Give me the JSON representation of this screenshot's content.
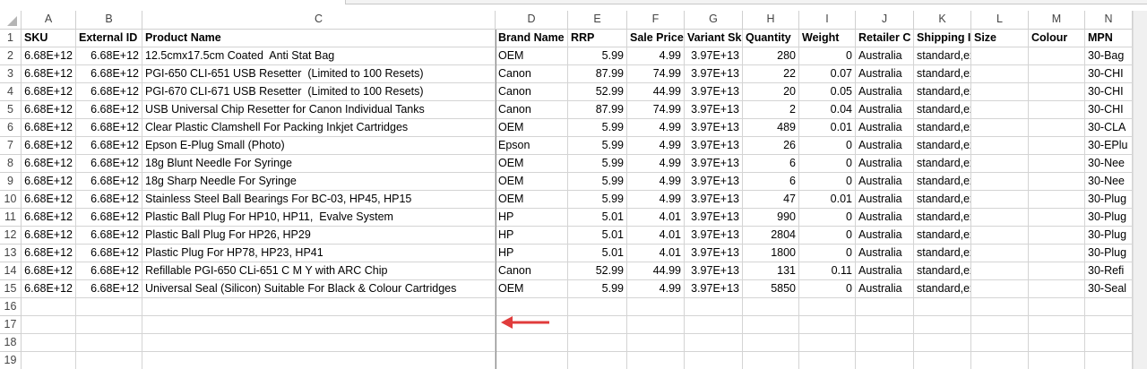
{
  "column_headers": [
    "A",
    "B",
    "C",
    "D",
    "E",
    "F",
    "G",
    "H",
    "I",
    "J",
    "K",
    "L",
    "M",
    "N"
  ],
  "row_numbers": [
    1,
    2,
    3,
    4,
    5,
    6,
    7,
    8,
    9,
    10,
    11,
    12,
    13,
    14,
    15,
    16,
    17,
    18,
    19
  ],
  "rows": [
    [
      "SKU",
      "External ID",
      "Product Name",
      "Brand Name",
      "RRP",
      "Sale Price",
      "Variant Sk",
      "Quantity",
      "Weight",
      "Retailer C",
      "Shipping I",
      "Size",
      "Colour",
      "MPN"
    ],
    [
      "6.68E+12",
      "6.68E+12",
      "12.5cmx17.5cm Coated  Anti Stat Bag",
      "OEM",
      "5.99",
      "4.99",
      "3.97E+13",
      "280",
      "0",
      "Australia",
      "standard,express",
      null,
      null,
      "30-Bag"
    ],
    [
      "6.68E+12",
      "6.68E+12",
      "PGI-650 CLI-651 USB Resetter  (Limited to 100 Resets)",
      "Canon",
      "87.99",
      "74.99",
      "3.97E+13",
      "22",
      "0.07",
      "Australia",
      "standard,express",
      null,
      null,
      "30-CHI"
    ],
    [
      "6.68E+12",
      "6.68E+12",
      "PGI-670 CLI-671 USB Resetter  (Limited to 100 Resets)",
      "Canon",
      "52.99",
      "44.99",
      "3.97E+13",
      "20",
      "0.05",
      "Australia",
      "standard,express",
      null,
      null,
      "30-CHI"
    ],
    [
      "6.68E+12",
      "6.68E+12",
      "USB Universal Chip Resetter for Canon Individual Tanks",
      "Canon",
      "87.99",
      "74.99",
      "3.97E+13",
      "2",
      "0.04",
      "Australia",
      "standard,express",
      null,
      null,
      "30-CHI"
    ],
    [
      "6.68E+12",
      "6.68E+12",
      "Clear Plastic Clamshell For Packing Inkjet Cartridges",
      "OEM",
      "5.99",
      "4.99",
      "3.97E+13",
      "489",
      "0.01",
      "Australia",
      "standard,express",
      null,
      null,
      "30-CLA"
    ],
    [
      "6.68E+12",
      "6.68E+12",
      "Epson E-Plug Small (Photo)",
      "Epson",
      "5.99",
      "4.99",
      "3.97E+13",
      "26",
      "0",
      "Australia",
      "standard,express",
      null,
      null,
      "30-EPlu"
    ],
    [
      "6.68E+12",
      "6.68E+12",
      "18g Blunt Needle For Syringe",
      "OEM",
      "5.99",
      "4.99",
      "3.97E+13",
      "6",
      "0",
      "Australia",
      "standard,express",
      null,
      null,
      "30-Nee"
    ],
    [
      "6.68E+12",
      "6.68E+12",
      "18g Sharp Needle For Syringe",
      "OEM",
      "5.99",
      "4.99",
      "3.97E+13",
      "6",
      "0",
      "Australia",
      "standard,express",
      null,
      null,
      "30-Nee"
    ],
    [
      "6.68E+12",
      "6.68E+12",
      "Stainless Steel Ball Bearings For BC-03, HP45, HP15",
      "OEM",
      "5.99",
      "4.99",
      "3.97E+13",
      "47",
      "0.01",
      "Australia",
      "standard,express",
      null,
      null,
      "30-Plug"
    ],
    [
      "6.68E+12",
      "6.68E+12",
      "Plastic Ball Plug For HP10, HP11,  Evalve System",
      "HP",
      "5.01",
      "4.01",
      "3.97E+13",
      "990",
      "0",
      "Australia",
      "standard,express",
      null,
      null,
      "30-Plug"
    ],
    [
      "6.68E+12",
      "6.68E+12",
      "Plastic Ball Plug For HP26, HP29",
      "HP",
      "5.01",
      "4.01",
      "3.97E+13",
      "2804",
      "0",
      "Australia",
      "standard,express",
      null,
      null,
      "30-Plug"
    ],
    [
      "6.68E+12",
      "6.68E+12",
      "Plastic Plug For HP78, HP23, HP41",
      "HP",
      "5.01",
      "4.01",
      "3.97E+13",
      "1800",
      "0",
      "Australia",
      "standard,express",
      null,
      null,
      "30-Plug"
    ],
    [
      "6.68E+12",
      "6.68E+12",
      "Refillable PGI-650 CLi-651 C M Y with ARC Chip",
      "Canon",
      "52.99",
      "44.99",
      "3.97E+13",
      "131",
      "0.11",
      "Australia",
      "standard,express",
      null,
      null,
      "30-Refi"
    ],
    [
      "6.68E+12",
      "6.68E+12",
      "Universal Seal (Silicon) Suitable For Black & Colour Cartridges",
      "OEM",
      "5.99",
      "4.99",
      "3.97E+13",
      "5850",
      "0",
      "Australia",
      "standard,express",
      null,
      null,
      "30-Seal"
    ]
  ]
}
